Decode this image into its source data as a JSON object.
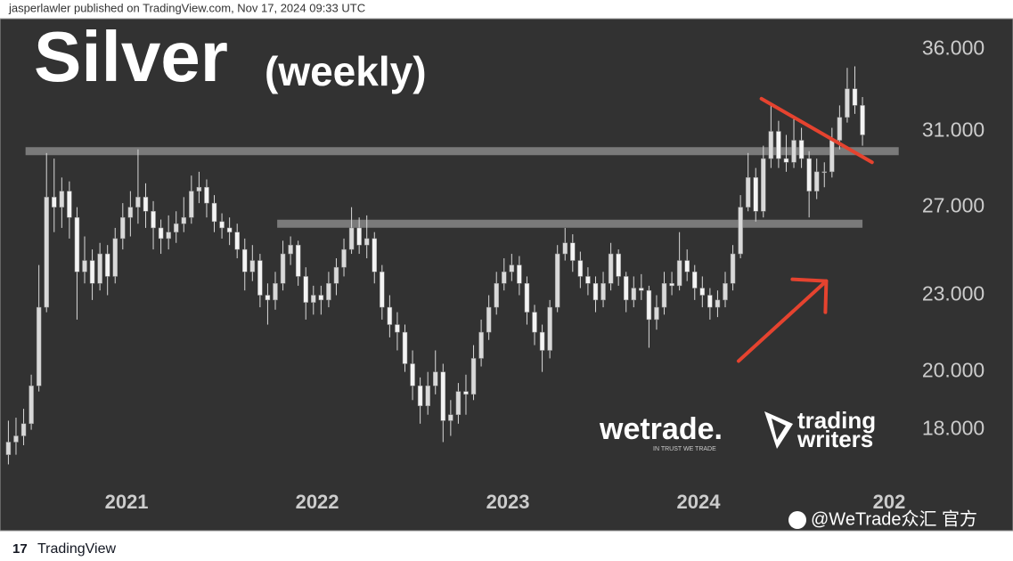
{
  "header": {
    "text": "jasperlawler published on TradingView.com, Nov 17, 2024 09:33 UTC"
  },
  "chart_data": {
    "type": "candlestick",
    "title": "Silver",
    "subtitle": "(weekly)",
    "color": "#d9d9d9",
    "log_scale": true,
    "xlim": [
      2020.336,
      2025.056
    ],
    "xticks": [
      2021,
      2022,
      2023,
      2024,
      {
        "value": 2025,
        "label": "202"
      }
    ],
    "ylim": [
      16.4,
      38
    ],
    "yticks": [
      {
        "value": 18,
        "label": "18.000"
      },
      {
        "value": 20,
        "label": "20.000"
      },
      {
        "value": 23,
        "label": "23.000"
      },
      {
        "value": 27,
        "label": "27.000"
      },
      {
        "value": 31,
        "label": "31.000"
      },
      {
        "value": 36,
        "label": "36.000"
      }
    ],
    "x": [
      2020.38,
      2020.42,
      2020.46,
      2020.5,
      2020.54,
      2020.58,
      2020.62,
      2020.66,
      2020.7,
      2020.74,
      2020.78,
      2020.82,
      2020.86,
      2020.9,
      2020.94,
      2020.98,
      2021.02,
      2021.06,
      2021.1,
      2021.14,
      2021.18,
      2021.22,
      2021.26,
      2021.3,
      2021.34,
      2021.38,
      2021.42,
      2021.46,
      2021.5,
      2021.54,
      2021.58,
      2021.62,
      2021.66,
      2021.7,
      2021.74,
      2021.78,
      2021.82,
      2021.86,
      2021.9,
      2021.94,
      2021.98,
      2022.02,
      2022.06,
      2022.1,
      2022.14,
      2022.18,
      2022.22,
      2022.26,
      2022.3,
      2022.34,
      2022.38,
      2022.42,
      2022.46,
      2022.5,
      2022.54,
      2022.58,
      2022.62,
      2022.66,
      2022.7,
      2022.74,
      2022.78,
      2022.82,
      2022.86,
      2022.9,
      2022.94,
      2022.98,
      2023.02,
      2023.06,
      2023.1,
      2023.14,
      2023.18,
      2023.22,
      2023.26,
      2023.3,
      2023.34,
      2023.38,
      2023.42,
      2023.46,
      2023.5,
      2023.54,
      2023.58,
      2023.62,
      2023.66,
      2023.7,
      2023.74,
      2023.78,
      2023.82,
      2023.86,
      2023.9,
      2023.94,
      2023.98,
      2024.02,
      2024.06,
      2024.1,
      2024.14,
      2024.18,
      2024.22,
      2024.26,
      2024.3,
      2024.34,
      2024.38,
      2024.42,
      2024.46,
      2024.5,
      2024.54,
      2024.58,
      2024.62,
      2024.66,
      2024.7,
      2024.74,
      2024.78,
      2024.82,
      2024.86
    ],
    "ohlc": [
      [
        17.2,
        18.3,
        16.9,
        17.6
      ],
      [
        17.6,
        18.4,
        17.2,
        17.8
      ],
      [
        17.8,
        18.7,
        17.5,
        18.2
      ],
      [
        18.2,
        19.9,
        18.0,
        19.5
      ],
      [
        19.5,
        24.3,
        19.3,
        22.5
      ],
      [
        22.5,
        29.8,
        22.3,
        27.5
      ],
      [
        27.5,
        29.5,
        25.8,
        27.0
      ],
      [
        27.0,
        28.5,
        26.0,
        27.8
      ],
      [
        27.8,
        28.3,
        25.5,
        26.5
      ],
      [
        26.5,
        27.0,
        22.0,
        24.0
      ],
      [
        24.0,
        25.6,
        23.5,
        24.5
      ],
      [
        24.5,
        25.0,
        22.8,
        23.5
      ],
      [
        23.5,
        25.3,
        23.2,
        24.8
      ],
      [
        24.8,
        25.2,
        23.0,
        23.8
      ],
      [
        23.8,
        26.0,
        23.5,
        25.5
      ],
      [
        25.5,
        27.2,
        25.0,
        26.5
      ],
      [
        26.5,
        27.8,
        25.6,
        27.0
      ],
      [
        27.0,
        30.0,
        26.2,
        27.5
      ],
      [
        27.5,
        28.2,
        26.0,
        26.8
      ],
      [
        26.8,
        27.3,
        25.0,
        26.0
      ],
      [
        26.0,
        26.4,
        24.8,
        25.5
      ],
      [
        25.5,
        26.6,
        25.0,
        25.8
      ],
      [
        25.8,
        26.8,
        25.3,
        26.2
      ],
      [
        26.2,
        27.5,
        25.8,
        26.5
      ],
      [
        26.5,
        28.6,
        26.2,
        27.8
      ],
      [
        27.8,
        28.8,
        27.2,
        28.0
      ],
      [
        28.0,
        28.4,
        26.5,
        27.2
      ],
      [
        27.2,
        27.6,
        25.8,
        26.3
      ],
      [
        26.3,
        26.7,
        25.5,
        26.0
      ],
      [
        26.0,
        26.5,
        25.2,
        25.8
      ],
      [
        25.8,
        26.2,
        24.6,
        25.0
      ],
      [
        25.0,
        25.5,
        23.2,
        24.0
      ],
      [
        24.0,
        25.2,
        23.6,
        24.5
      ],
      [
        24.5,
        24.8,
        22.5,
        23.0
      ],
      [
        23.0,
        23.5,
        21.8,
        22.8
      ],
      [
        22.8,
        24.0,
        22.4,
        23.5
      ],
      [
        23.5,
        25.4,
        23.2,
        24.8
      ],
      [
        24.8,
        25.6,
        24.3,
        25.2
      ],
      [
        25.2,
        25.4,
        23.4,
        23.8
      ],
      [
        23.8,
        24.2,
        22.0,
        22.7
      ],
      [
        22.7,
        23.4,
        22.2,
        23.0
      ],
      [
        23.0,
        23.4,
        22.2,
        22.8
      ],
      [
        22.8,
        24.0,
        22.5,
        23.5
      ],
      [
        23.5,
        24.6,
        23.0,
        24.2
      ],
      [
        24.2,
        25.5,
        23.8,
        25.0
      ],
      [
        25.0,
        27.0,
        24.8,
        26.0
      ],
      [
        26.0,
        26.5,
        24.8,
        25.2
      ],
      [
        25.2,
        26.6,
        24.6,
        25.5
      ],
      [
        25.5,
        25.8,
        23.5,
        24.0
      ],
      [
        24.0,
        24.3,
        22.0,
        22.5
      ],
      [
        22.5,
        23.0,
        21.3,
        21.8
      ],
      [
        21.8,
        22.3,
        20.8,
        21.5
      ],
      [
        21.5,
        21.8,
        20.0,
        20.3
      ],
      [
        20.3,
        20.8,
        19.0,
        19.5
      ],
      [
        19.5,
        19.8,
        18.2,
        18.8
      ],
      [
        18.8,
        20.0,
        18.5,
        19.5
      ],
      [
        19.5,
        20.8,
        19.2,
        20.0
      ],
      [
        20.0,
        20.3,
        17.6,
        18.3
      ],
      [
        18.3,
        19.0,
        17.8,
        18.5
      ],
      [
        18.5,
        19.6,
        18.2,
        19.3
      ],
      [
        19.3,
        19.9,
        18.5,
        19.2
      ],
      [
        19.2,
        21.0,
        19.0,
        20.5
      ],
      [
        20.5,
        22.0,
        20.2,
        21.5
      ],
      [
        21.5,
        23.0,
        21.2,
        22.5
      ],
      [
        22.5,
        24.0,
        22.2,
        23.5
      ],
      [
        23.5,
        24.6,
        23.2,
        24.0
      ],
      [
        24.0,
        24.8,
        23.6,
        24.3
      ],
      [
        24.3,
        24.7,
        23.0,
        23.5
      ],
      [
        23.5,
        23.8,
        21.8,
        22.3
      ],
      [
        22.3,
        22.6,
        21.0,
        21.5
      ],
      [
        21.5,
        21.8,
        20.0,
        20.8
      ],
      [
        20.8,
        22.8,
        20.5,
        22.5
      ],
      [
        22.5,
        25.2,
        22.3,
        24.8
      ],
      [
        24.8,
        26.0,
        24.5,
        25.3
      ],
      [
        25.3,
        25.7,
        24.0,
        24.5
      ],
      [
        24.5,
        24.9,
        23.3,
        23.8
      ],
      [
        23.8,
        24.2,
        23.0,
        23.5
      ],
      [
        23.5,
        23.8,
        22.3,
        22.8
      ],
      [
        22.8,
        24.0,
        22.5,
        23.5
      ],
      [
        23.5,
        25.3,
        23.2,
        24.8
      ],
      [
        24.8,
        25.0,
        23.4,
        23.8
      ],
      [
        23.8,
        24.0,
        22.3,
        22.8
      ],
      [
        22.8,
        23.8,
        22.5,
        23.3
      ],
      [
        23.3,
        23.9,
        22.8,
        23.2
      ],
      [
        23.2,
        23.4,
        20.9,
        22.0
      ],
      [
        22.0,
        23.0,
        21.6,
        22.5
      ],
      [
        22.5,
        24.0,
        22.2,
        23.5
      ],
      [
        23.5,
        24.0,
        23.0,
        23.4
      ],
      [
        23.4,
        25.8,
        23.2,
        24.5
      ],
      [
        24.5,
        25.0,
        23.6,
        24.0
      ],
      [
        24.0,
        24.3,
        22.8,
        23.3
      ],
      [
        23.3,
        23.8,
        22.5,
        23.0
      ],
      [
        23.0,
        23.3,
        22.0,
        22.5
      ],
      [
        22.5,
        23.2,
        22.1,
        22.8
      ],
      [
        22.8,
        24.0,
        22.5,
        23.5
      ],
      [
        23.5,
        25.2,
        23.2,
        24.8
      ],
      [
        24.8,
        27.6,
        24.6,
        27.0
      ],
      [
        27.0,
        29.8,
        26.8,
        28.5
      ],
      [
        28.5,
        29.0,
        26.3,
        26.8
      ],
      [
        26.8,
        30.2,
        26.5,
        29.5
      ],
      [
        29.5,
        32.5,
        29.0,
        31.0
      ],
      [
        31.0,
        31.6,
        29.0,
        29.5
      ],
      [
        29.5,
        30.8,
        28.8,
        29.3
      ],
      [
        29.3,
        31.8,
        29.0,
        30.5
      ],
      [
        30.5,
        31.2,
        29.0,
        29.5
      ],
      [
        29.5,
        29.9,
        26.5,
        27.8
      ],
      [
        27.8,
        29.5,
        27.4,
        28.8
      ],
      [
        28.8,
        29.3,
        28.0,
        28.8
      ],
      [
        28.8,
        31.2,
        28.5,
        30.5
      ],
      [
        30.5,
        32.5,
        30.0,
        31.8
      ],
      [
        31.8,
        34.8,
        31.5,
        33.5
      ],
      [
        33.5,
        34.9,
        32.0,
        32.5
      ],
      [
        32.5,
        33.0,
        30.2,
        30.8
      ]
    ],
    "levels": [
      {
        "value": 29.9,
        "x": [
          2020.47,
          2025.05
        ],
        "color": "#7a7a7a"
      },
      {
        "value": 26.2,
        "x": [
          2021.79,
          2024.86
        ],
        "color": "#7a7a7a"
      }
    ],
    "trendline": {
      "x": [
        2024.33,
        2024.91
      ],
      "y": [
        32.9,
        29.3
      ],
      "color": "#e5432f"
    },
    "arrow": {
      "x": [
        2024.21,
        2024.67
      ],
      "y": [
        20.4,
        23.6
      ],
      "color": "#e5432f"
    }
  },
  "logos": {
    "wetrade": "wetrade.",
    "wetrade_tagline": "IN TRUST WE TRADE",
    "trading_writers": [
      "trading",
      "writers"
    ]
  },
  "footer": {
    "brand": "TradingView",
    "watermark": "@WeTrade众汇 官方"
  }
}
